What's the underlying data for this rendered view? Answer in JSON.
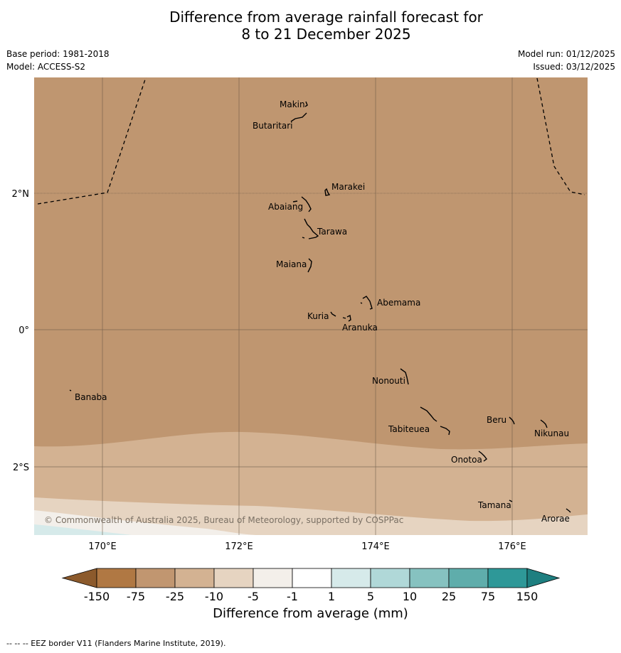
{
  "title_line1": "Difference from average rainfall forecast for",
  "title_line2": "8 to 21 December 2025",
  "base_period": "Base period: 1981-2018",
  "model": "Model: ACCESS-S2",
  "model_run": "Model run: 01/12/2025",
  "issued": "Issued: 03/12/2025",
  "copyright": "© Commonwealth of Australia 2025, Bureau of Meteorology, supported by COSPPac",
  "lon_ticks": [
    "170°E",
    "172°E",
    "174°E",
    "176°E"
  ],
  "lat_ticks": [
    "2°N",
    "0°",
    "2°S"
  ],
  "places": {
    "makin": "Makin",
    "butaritari": "Butaritari",
    "marakei": "Marakei",
    "abaiang": "Abaiang",
    "tarawa": "Tarawa",
    "maiana": "Maiana",
    "abemama": "Abemama",
    "kuria": "Kuria",
    "aranuka": "Aranuka",
    "nonouti": "Nonouti",
    "banaba": "Banaba",
    "beru": "Beru",
    "tabiteuea": "Tabiteuea",
    "nikunau": "Nikunau",
    "onotoa": "Onotoa",
    "tamana": "Tamana",
    "arorae": "Arorae"
  },
  "colorbar": {
    "ticks": [
      "-150",
      "-75",
      "-25",
      "-10",
      "-5",
      "-1",
      "1",
      "5",
      "10",
      "25",
      "75",
      "150"
    ],
    "colors": [
      "#8c5a2c",
      "#b07843",
      "#c19670",
      "#d3b292",
      "#e6d4c1",
      "#f3efea",
      "#ffffff",
      "#d6eaea",
      "#b0d8d8",
      "#86c2c0",
      "#5fadab",
      "#2e9898",
      "#1e7f80"
    ],
    "label": "Difference from average (mm)"
  },
  "map_colors": {
    "ocean_dry": "#bf9670",
    "band1": "#d3b292",
    "band2": "#e6d4c1",
    "band3": "#f3efea",
    "wet": "#d6eaea"
  },
  "footer": "--  --  -- EEZ border V11 (Flanders Marine Institute, 2019)."
}
